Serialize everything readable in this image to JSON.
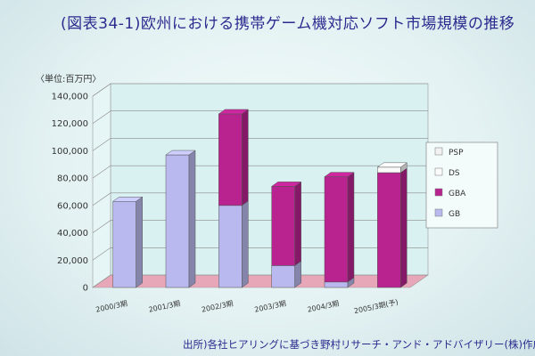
{
  "title": "(図表34-1)欧州における携帯ゲーム機対応ソフト市場規模の推移",
  "unit_label": "〈単位:百万円〉",
  "source": "出所)各社ヒアリングに基づき野村リサーチ・アンド・アドバイザリー(株)作成",
  "colors": {
    "PSP": "#f2f2f2",
    "DS": "#fafafa",
    "GBA": "#b8238f",
    "GB": "#b9b9ef",
    "floor": "#e7a7b8",
    "wall": "#d9f1f1",
    "grid": "#8a8a8a"
  },
  "chart_data": {
    "type": "bar",
    "stacked": true,
    "three_d": true,
    "title": "(図表34-1)欧州における携帯ゲーム機対応ソフト市場規模の推移",
    "ylabel": "〈単位:百万円〉",
    "ylim": [
      0,
      140000
    ],
    "yticks": [
      "0",
      "20,000",
      "40,000",
      "60,000",
      "80,000",
      "100,000",
      "120,000",
      "140,000"
    ],
    "grid": true,
    "legend_position": "right",
    "categories": [
      "2000/3期",
      "2001/3期",
      "2002/3期",
      "2003/3期",
      "2004/3期",
      "2005/3期(予)"
    ],
    "series": [
      {
        "name": "GB",
        "values": [
          63000,
          97000,
          60000,
          16000,
          4000,
          0
        ]
      },
      {
        "name": "GBA",
        "values": [
          0,
          0,
          67000,
          58000,
          77000,
          84000
        ]
      },
      {
        "name": "DS",
        "values": [
          0,
          0,
          0,
          0,
          0,
          4000
        ]
      },
      {
        "name": "PSP",
        "values": [
          0,
          0,
          0,
          0,
          0,
          0
        ]
      }
    ],
    "legend": [
      "PSP",
      "DS",
      "GBA",
      "GB"
    ]
  }
}
